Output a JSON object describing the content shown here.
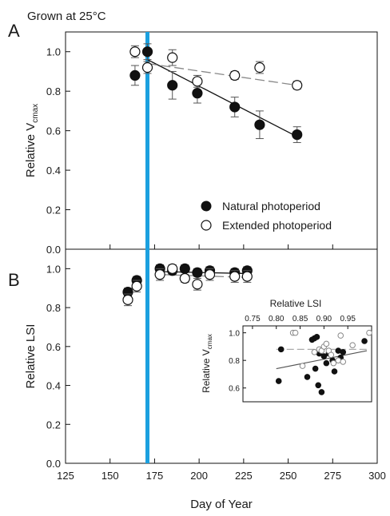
{
  "figure": {
    "title": "Grown at 25°C",
    "panel_a_letter": "A",
    "panel_b_letter": "B",
    "x_label": "Day of Year",
    "panel_a_ylabel": "Relative V",
    "panel_a_ylabel_sub": "cmax",
    "panel_b_ylabel": "Relative LSI",
    "inset_xlabel": "Relative LSI",
    "inset_ylabel": "Relative V",
    "inset_ylabel_sub": "cmax",
    "legend": [
      {
        "label": "Natural photoperiod",
        "marker": "filled"
      },
      {
        "label": "Extended photoperiod",
        "marker": "open"
      }
    ],
    "colors": {
      "marker": "#111111",
      "error_bar": "#555555",
      "solstice_line": "#1ba0df",
      "dashed_fit": "#888888",
      "solid_fit": "#111111"
    }
  },
  "chart_data": [
    {
      "panel": "A",
      "type": "scatter",
      "xlabel": "Day of Year",
      "ylabel": "Relative Vcmax",
      "xlim": [
        125,
        300
      ],
      "ylim": [
        0.0,
        1.1
      ],
      "x_ticks": [
        "125",
        "150",
        "175",
        "200",
        "225",
        "250",
        "275",
        "300"
      ],
      "y_ticks": [
        "0.0",
        "0.2",
        "0.4",
        "0.6",
        "0.8",
        "1.0"
      ],
      "vertical_line_day": 171,
      "series": [
        {
          "name": "Natural photoperiod",
          "marker": "filled",
          "x": [
            164,
            171,
            185,
            199,
            220,
            234,
            255
          ],
          "y": [
            0.88,
            1.0,
            0.83,
            0.79,
            0.72,
            0.63,
            0.58
          ],
          "err": [
            0.05,
            0.04,
            0.07,
            0.05,
            0.05,
            0.07,
            0.04
          ]
        },
        {
          "name": "Extended photoperiod",
          "marker": "open",
          "x": [
            164,
            171,
            185,
            199,
            220,
            234,
            255
          ],
          "y": [
            1.0,
            0.92,
            0.97,
            0.85,
            0.88,
            0.92,
            0.83
          ],
          "err": [
            0.03,
            0.03,
            0.04,
            0.03,
            0.02,
            0.03,
            0.02
          ]
        }
      ],
      "fits": [
        {
          "style": "solid",
          "x": [
            171,
            255
          ],
          "y": [
            0.96,
            0.57
          ]
        },
        {
          "style": "dashed",
          "x": [
            171,
            255
          ],
          "y": [
            0.94,
            0.83
          ]
        }
      ]
    },
    {
      "panel": "B",
      "type": "scatter",
      "xlabel": "Day of Year",
      "ylabel": "Relative LSI",
      "xlim": [
        125,
        300
      ],
      "ylim": [
        0.0,
        1.1
      ],
      "x_ticks": [
        "125",
        "150",
        "175",
        "200",
        "225",
        "250",
        "275",
        "300"
      ],
      "y_ticks": [
        "0.0",
        "0.2",
        "0.4",
        "0.6",
        "0.8",
        "1.0"
      ],
      "vertical_line_day": 171,
      "series": [
        {
          "name": "Natural photoperiod",
          "marker": "filled",
          "x": [
            160,
            165,
            178,
            185,
            192,
            199,
            206,
            220,
            227
          ],
          "y": [
            0.88,
            0.94,
            1.0,
            0.99,
            1.0,
            0.98,
            0.99,
            0.98,
            0.99
          ],
          "err": [
            0.02,
            0.02,
            0.02,
            0.02,
            0.02,
            0.02,
            0.02,
            0.02,
            0.02
          ]
        },
        {
          "name": "Extended photoperiod",
          "marker": "open",
          "x": [
            160,
            165,
            178,
            185,
            192,
            199,
            206,
            220,
            227
          ],
          "y": [
            0.84,
            0.91,
            0.97,
            1.0,
            0.95,
            0.92,
            0.97,
            0.96,
            0.96
          ],
          "err": [
            0.03,
            0.03,
            0.03,
            0.02,
            0.02,
            0.03,
            0.03,
            0.03,
            0.03
          ]
        }
      ],
      "fits": [
        {
          "style": "solid",
          "x": [
            178,
            227
          ],
          "y": [
            0.985,
            0.975
          ]
        },
        {
          "style": "dashed",
          "x": [
            178,
            227
          ],
          "y": [
            0.97,
            0.955
          ]
        }
      ]
    },
    {
      "panel": "B-inset",
      "type": "scatter",
      "xlabel": "Relative LSI",
      "ylabel": "Relative Vcmax",
      "xlim": [
        0.73,
        1.0
      ],
      "ylim": [
        0.5,
        1.05
      ],
      "x_ticks": [
        "0.75",
        "0.80",
        "0.85",
        "0.90",
        "0.95"
      ],
      "y_ticks": [
        "0.6",
        "0.8",
        "1.0"
      ],
      "series": [
        {
          "name": "Natural photoperiod",
          "marker": "filled",
          "x": [
            0.805,
            0.81,
            0.865,
            0.875,
            0.88,
            0.882,
            0.885,
            0.888,
            0.89,
            0.895,
            0.9,
            0.905,
            0.91,
            0.918,
            0.922,
            0.93,
            0.935,
            0.94,
            0.985
          ],
          "y": [
            0.65,
            0.88,
            0.68,
            0.95,
            0.96,
            0.74,
            0.97,
            0.62,
            0.85,
            0.57,
            0.83,
            0.78,
            0.85,
            0.8,
            0.72,
            0.87,
            0.82,
            0.86,
            0.94
          ]
        },
        {
          "name": "Extended photoperiod",
          "marker": "open",
          "x": [
            0.835,
            0.84,
            0.855,
            0.88,
            0.89,
            0.895,
            0.9,
            0.905,
            0.91,
            0.915,
            0.92,
            0.93,
            0.935,
            0.94,
            0.96,
            0.995
          ],
          "y": [
            1.0,
            1.0,
            0.76,
            0.86,
            0.88,
            0.87,
            0.9,
            0.92,
            0.87,
            0.84,
            0.78,
            0.8,
            0.98,
            0.79,
            0.91,
            1.0
          ]
        }
      ],
      "fits": [
        {
          "style": "solid",
          "x": [
            0.8,
            0.99
          ],
          "y": [
            0.74,
            0.87
          ]
        },
        {
          "style": "dashed",
          "x": [
            0.8,
            0.99
          ],
          "y": [
            0.88,
            0.88
          ]
        }
      ]
    }
  ]
}
